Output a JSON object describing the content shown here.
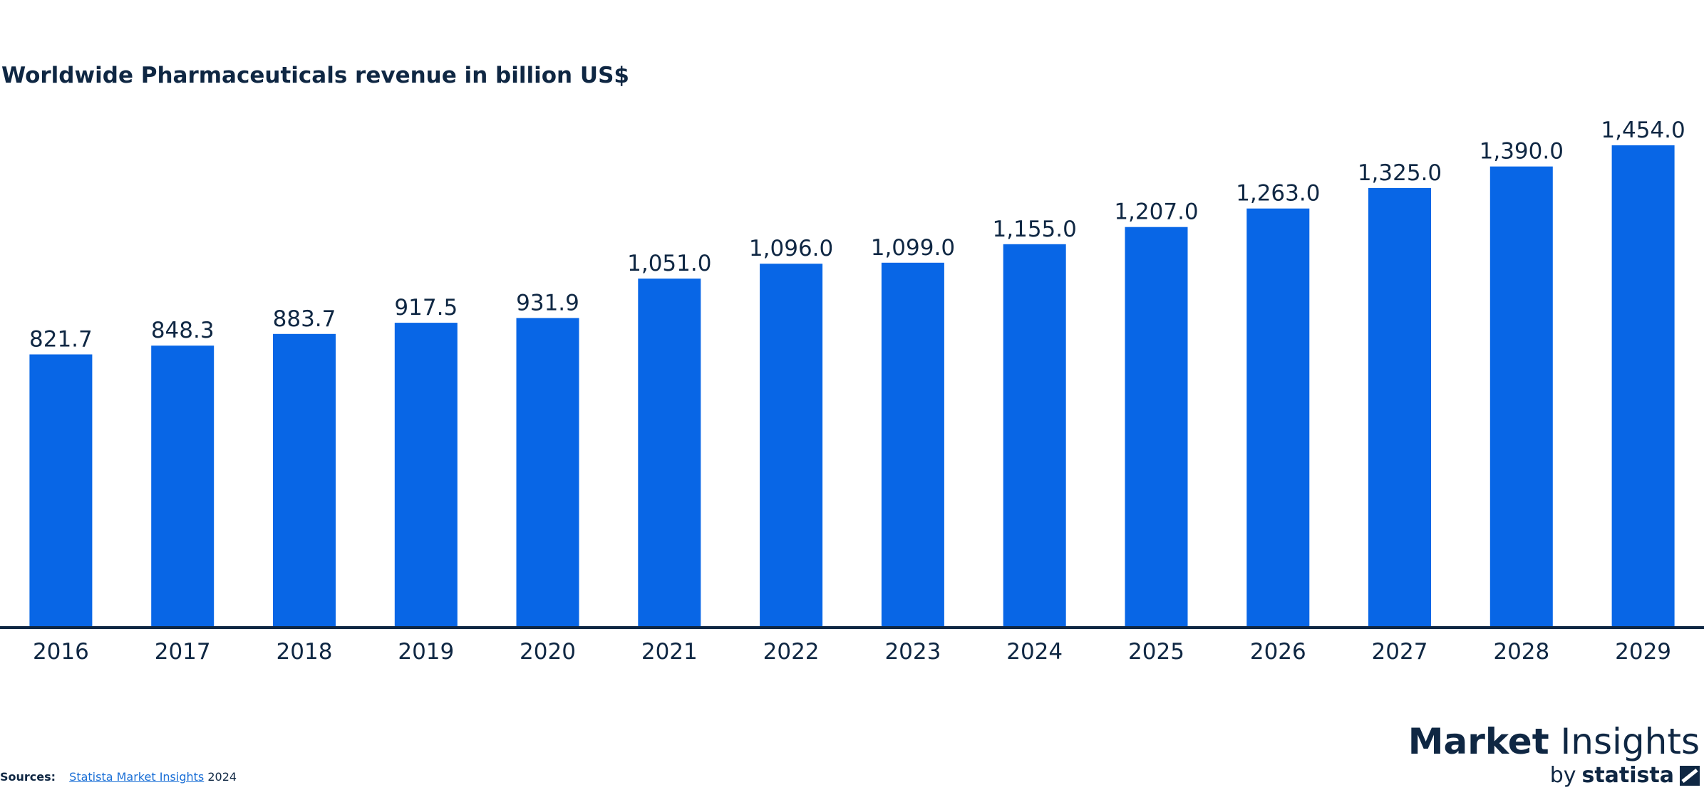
{
  "chart_data": {
    "type": "bar",
    "title": "Worldwide Pharmaceuticals revenue in billion US$",
    "categories": [
      "2016",
      "2017",
      "2018",
      "2019",
      "2020",
      "2021",
      "2022",
      "2023",
      "2024",
      "2025",
      "2026",
      "2027",
      "2028",
      "2029"
    ],
    "values": [
      821.7,
      848.3,
      883.7,
      917.5,
      931.9,
      1051.0,
      1096.0,
      1099.0,
      1155.0,
      1207.0,
      1263.0,
      1325.0,
      1390.0,
      1454.0
    ],
    "value_labels": [
      "821.7",
      "848.3",
      "883.7",
      "917.5",
      "931.9",
      "1,051.0",
      "1,096.0",
      "1,099.0",
      "1,155.0",
      "1,207.0",
      "1,263.0",
      "1,325.0",
      "1,390.0",
      "1,454.0"
    ],
    "xlabel": "",
    "ylabel": "",
    "ylim": [
      0,
      1454.0
    ],
    "grid": false,
    "legend": "none",
    "bar_color": "#0866e6",
    "axis_color": "#0f2743"
  },
  "footer": {
    "sources_label": "Sources:",
    "source_link": "Statista Market Insights",
    "source_year": "2024"
  },
  "brand": {
    "market": "Market",
    "insights": "Insights",
    "by": "by",
    "statista": "statista",
    "logo_icon": "statista-logo-icon"
  }
}
